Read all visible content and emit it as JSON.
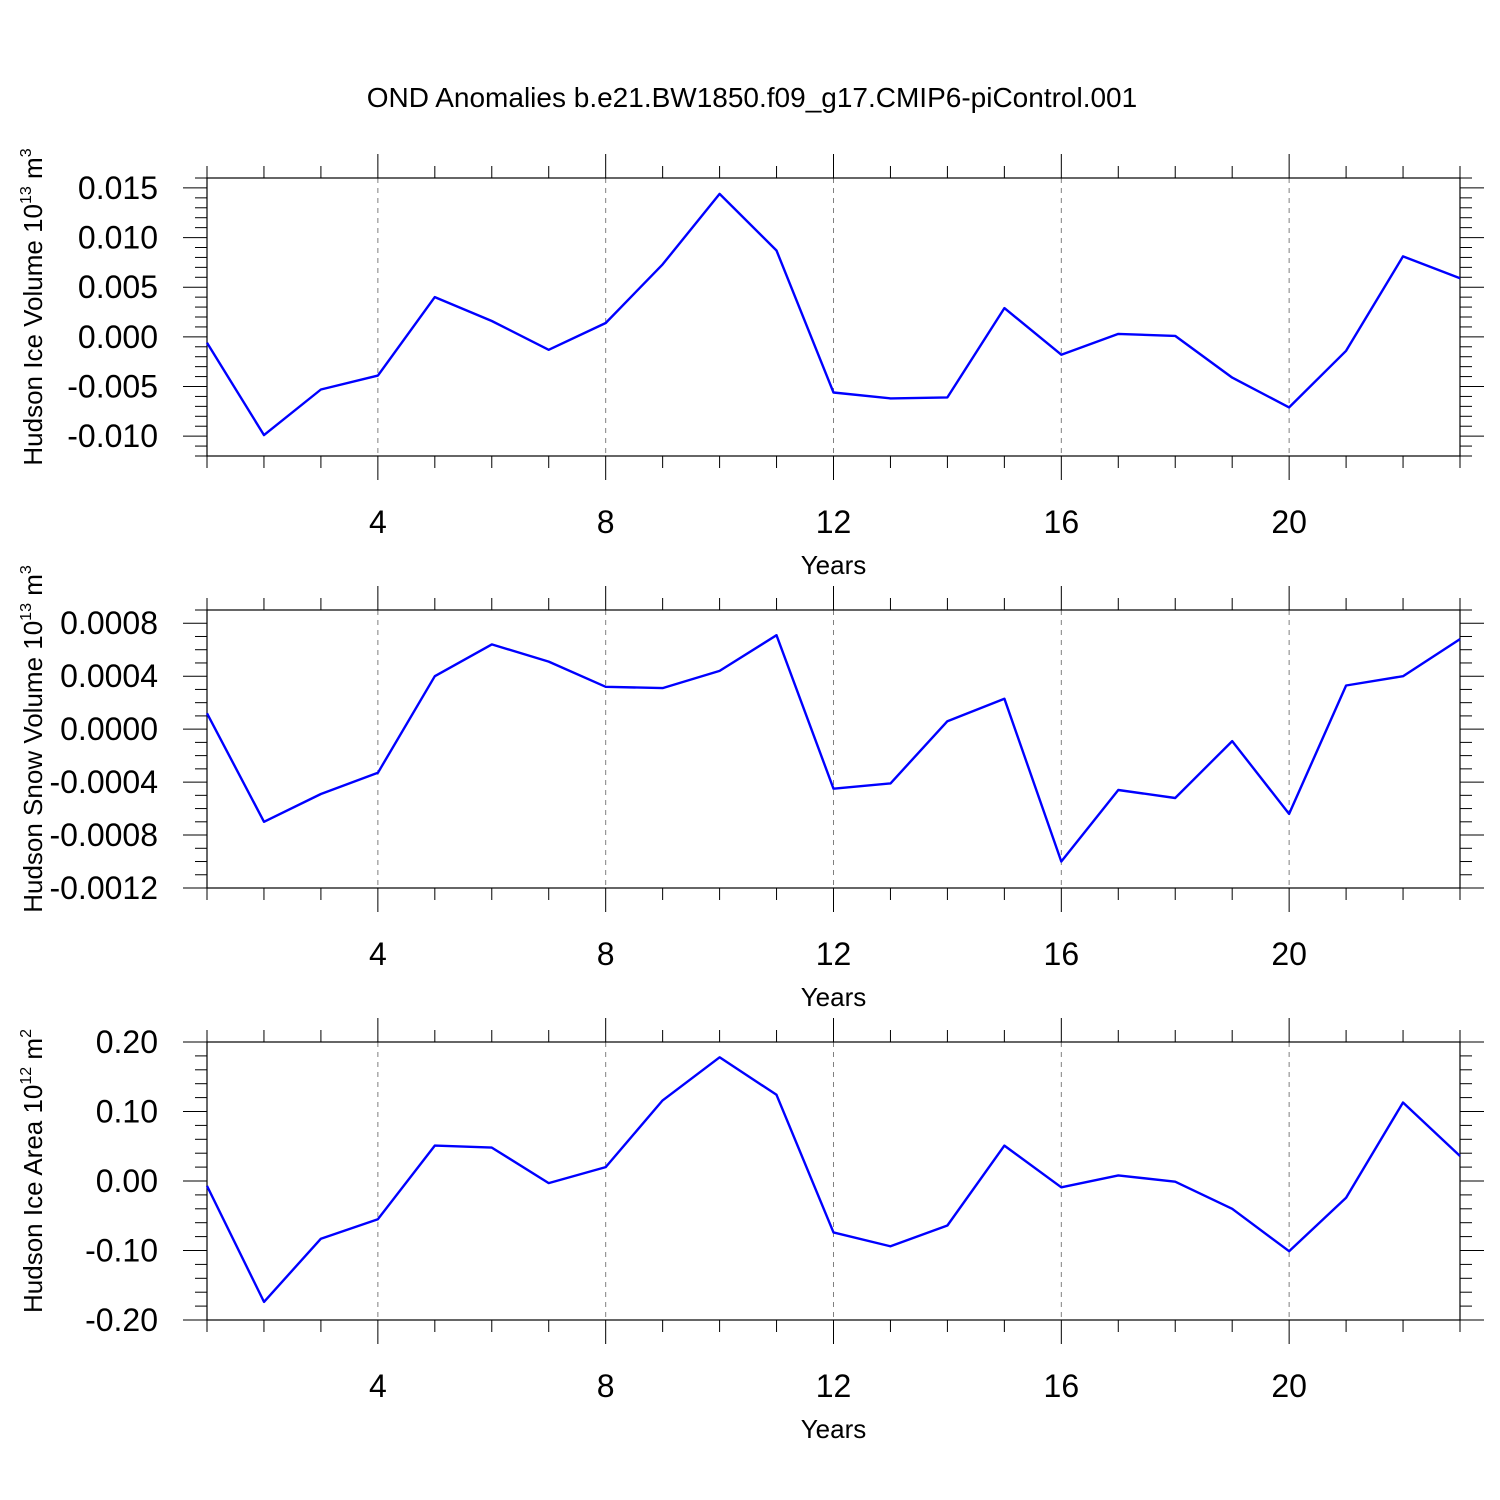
{
  "figure": {
    "title": "OND Anomalies b.e21.BW1850.f09_g17.CMIP6-piControl.001",
    "line_color": "#0000ff",
    "grid_color": "#808080",
    "axis_color": "#000000"
  },
  "chart_data": [
    {
      "type": "line",
      "xlabel": "Years",
      "ylabel": "Hudson Ice Volume 10",
      "ylabel_sup": "13",
      "ylabel_unit": "m",
      "ylabel_unit_sup": "3",
      "xlim": [
        1,
        23
      ],
      "ylim": [
        -0.012,
        0.016
      ],
      "xticks": [
        4,
        8,
        12,
        16,
        20
      ],
      "xtick_labels": [
        "4",
        "8",
        "12",
        "16",
        "20"
      ],
      "yticks": [
        0.015,
        0.01,
        0.005,
        0,
        -0.005,
        -0.01
      ],
      "ytick_labels": [
        "0.015",
        "0.010",
        "0.005",
        "0.000",
        "-0.005",
        "-0.010"
      ],
      "grid": "vertical dashed at major x ticks",
      "x": [
        1,
        2,
        3,
        4,
        5,
        6,
        7,
        8,
        9,
        10,
        11,
        12,
        13,
        14,
        15,
        16,
        17,
        18,
        19,
        20,
        21,
        22,
        23
      ],
      "series": [
        {
          "values": [
            -0.0006,
            -0.0099,
            -0.0053,
            -0.0039,
            0.004,
            0.0016,
            -0.0013,
            0.0014,
            0.0073,
            0.0144,
            0.0087,
            -0.0056,
            -0.0062,
            -0.0061,
            0.0029,
            -0.0018,
            0.0003,
            0.0001,
            -0.0041,
            -0.0071,
            -0.0014,
            0.0081,
            0.0059
          ]
        }
      ]
    },
    {
      "type": "line",
      "xlabel": "Years",
      "ylabel": "Hudson Snow Volume 10",
      "ylabel_sup": "13",
      "ylabel_unit": "m",
      "ylabel_unit_sup": "3",
      "xlim": [
        1,
        23
      ],
      "ylim": [
        -0.0012,
        0.0009
      ],
      "xticks": [
        4,
        8,
        12,
        16,
        20
      ],
      "xtick_labels": [
        "4",
        "8",
        "12",
        "16",
        "20"
      ],
      "yticks": [
        0.0008,
        0.0004,
        0,
        -0.0004,
        -0.0008,
        -0.0012
      ],
      "ytick_labels": [
        "0.0008",
        "0.0004",
        "0.0000",
        "-0.0004",
        "-0.0008",
        "-0.0012"
      ],
      "grid": "vertical dashed at major x ticks",
      "x": [
        1,
        2,
        3,
        4,
        5,
        6,
        7,
        8,
        9,
        10,
        11,
        12,
        13,
        14,
        15,
        16,
        17,
        18,
        19,
        20,
        21,
        22,
        23
      ],
      "series": [
        {
          "values": [
            0.00012,
            -0.0007,
            -0.00049,
            -0.00033,
            0.0004,
            0.00064,
            0.00051,
            0.00032,
            0.00031,
            0.00044,
            0.00071,
            -0.00045,
            -0.00041,
            6e-05,
            0.00023,
            -0.001,
            -0.00046,
            -0.00052,
            -9e-05,
            -0.00064,
            0.00033,
            0.0004,
            0.00068
          ]
        }
      ]
    },
    {
      "type": "line",
      "xlabel": "Years",
      "ylabel": "Hudson Ice Area 10",
      "ylabel_sup": "12",
      "ylabel_unit": "m",
      "ylabel_unit_sup": "2",
      "xlim": [
        1,
        23
      ],
      "ylim": [
        -0.2,
        0.2
      ],
      "xticks": [
        4,
        8,
        12,
        16,
        20
      ],
      "xtick_labels": [
        "4",
        "8",
        "12",
        "16",
        "20"
      ],
      "yticks": [
        0.2,
        0.1,
        0,
        -0.1,
        -0.2
      ],
      "ytick_labels": [
        "0.20",
        "0.10",
        "0.00",
        "-0.10",
        "-0.20"
      ],
      "grid": "vertical dashed at major x ticks",
      "x": [
        1,
        2,
        3,
        4,
        5,
        6,
        7,
        8,
        9,
        10,
        11,
        12,
        13,
        14,
        15,
        16,
        17,
        18,
        19,
        20,
        21,
        22,
        23
      ],
      "series": [
        {
          "values": [
            -0.007,
            -0.174,
            -0.083,
            -0.055,
            0.051,
            0.048,
            -0.003,
            0.02,
            0.116,
            0.178,
            0.124,
            -0.074,
            -0.094,
            -0.064,
            0.051,
            -0.009,
            0.008,
            -0.001,
            -0.04,
            -0.101,
            -0.024,
            0.113,
            0.036
          ]
        }
      ]
    }
  ]
}
